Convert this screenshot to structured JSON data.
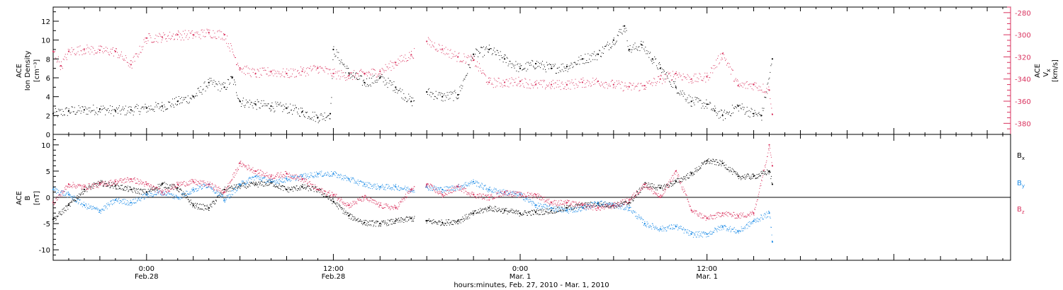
{
  "x_axis": {
    "title": "hours:minutes, Feb. 27, 2010 - Mar. 1, 2010",
    "ticks": [
      {
        "time": "0:00",
        "date": "Feb.28",
        "hours": 24
      },
      {
        "time": "12:00",
        "date": "Feb.28",
        "hours": 36
      },
      {
        "time": "0:00",
        "date": "Mar. 1",
        "hours": 48
      },
      {
        "time": "12:00",
        "date": "Mar. 1",
        "hours": 60
      }
    ]
  },
  "panel_top": {
    "left_label": {
      "line1": "ACE",
      "line2": "Ion Density",
      "line3": "[cm⁻³]"
    },
    "right_label": {
      "line1": "ACE",
      "line2": "V",
      "sub": "x",
      "line3": "[km/s]"
    },
    "left_ticks": [
      "0",
      "2",
      "4",
      "6",
      "8",
      "10",
      "12"
    ],
    "right_ticks": [
      "-280",
      "-300",
      "-320",
      "-340",
      "-360",
      "-380"
    ]
  },
  "panel_bottom": {
    "left_label": {
      "line1": "ACE",
      "line2": "B",
      "line3": "[nT]"
    },
    "left_ticks": [
      "10",
      "5",
      "0",
      "-5",
      "-10"
    ],
    "legend": [
      {
        "label": "B",
        "sub": "x",
        "color": "#000000"
      },
      {
        "label": "B",
        "sub": "y",
        "color": "#1a8ae6"
      },
      {
        "label": "B",
        "sub": "z",
        "color": "#d9325e"
      }
    ]
  },
  "chart_data": [
    {
      "type": "scatter",
      "title": "",
      "xlabel": "hours:minutes, Feb. 27, 2010 - Mar. 1, 2010",
      "x_unit": "hours since Feb 27 00:00",
      "xlim": [
        18,
        79.5
      ],
      "series": [
        {
          "name": "ACE Ion Density",
          "axis": "left",
          "color": "#000000",
          "ylim": [
            0,
            13.5
          ],
          "x": [
            18,
            19,
            20,
            21,
            22,
            23,
            24,
            25,
            26,
            27,
            28,
            29,
            29.5,
            30,
            31,
            32,
            33,
            34,
            35,
            35.8,
            36,
            37,
            38,
            39,
            40,
            41,
            42,
            43,
            44,
            45,
            46,
            47,
            48,
            49,
            50,
            51,
            52,
            53,
            54,
            54.7,
            55,
            55.8,
            56.5,
            57,
            58,
            59,
            60,
            60.5,
            61,
            62,
            63,
            63.5,
            64.2
          ],
          "y": [
            2.2,
            2.5,
            2.6,
            2.7,
            2.5,
            2.6,
            2.8,
            3.0,
            3.5,
            4.0,
            5.5,
            5.0,
            6.0,
            3.5,
            3.2,
            3.0,
            2.8,
            2.4,
            1.8,
            2.2,
            9.0,
            6.5,
            5.5,
            6.0,
            5.0,
            3.5,
            4.5,
            4.0,
            4.2,
            8.5,
            9.0,
            8.0,
            7.0,
            7.5,
            7.0,
            7.2,
            8.0,
            8.5,
            10.0,
            11.5,
            9.0,
            9.5,
            8.0,
            7.0,
            5.0,
            3.5,
            3.2,
            2.5,
            2.0,
            3.0,
            2.2,
            2.0,
            8.0
          ]
        },
        {
          "name": "ACE Vx",
          "axis": "right",
          "color": "#d9325e",
          "ylim": [
            -390,
            -275
          ],
          "x": [
            18,
            18.5,
            19,
            20,
            21,
            22,
            23,
            24,
            25,
            26,
            27,
            28,
            29,
            30,
            31,
            32,
            33,
            34,
            35,
            36,
            37,
            38,
            39,
            40,
            41,
            42,
            43,
            44,
            45,
            46,
            47,
            48,
            49,
            50,
            51,
            52,
            53,
            54,
            55,
            56,
            57,
            58,
            59,
            60,
            61,
            62,
            63,
            64,
            64.2
          ],
          "y": [
            -315,
            -328,
            -315,
            -313,
            -314,
            -315,
            -327,
            -303,
            -302,
            -300,
            -300,
            -298,
            -300,
            -330,
            -335,
            -333,
            -335,
            -333,
            -330,
            -335,
            -337,
            -335,
            -333,
            -325,
            -318,
            -306,
            -313,
            -320,
            -323,
            -343,
            -343,
            -342,
            -345,
            -345,
            -345,
            -343,
            -342,
            -345,
            -347,
            -346,
            -340,
            -335,
            -340,
            -338,
            -317,
            -346,
            -345,
            -350,
            -372
          ]
        }
      ]
    },
    {
      "type": "line",
      "title": "",
      "xlabel": "hours:minutes, Feb. 27, 2010 - Mar. 1, 2010",
      "x_unit": "hours since Feb 27 00:00",
      "xlim": [
        18,
        79.5
      ],
      "ylim": [
        -12,
        12
      ],
      "series": [
        {
          "name": "Bx",
          "color": "#000000",
          "x": [
            18,
            19,
            20,
            21,
            22,
            23,
            24,
            25,
            26,
            27,
            28,
            29,
            30,
            31,
            32,
            33,
            34,
            35,
            36,
            37,
            38,
            39,
            40,
            41,
            42,
            43,
            44,
            45,
            46,
            47,
            48,
            49,
            50,
            51,
            52,
            53,
            54,
            55,
            56,
            57,
            58,
            59,
            60,
            61,
            62,
            63,
            64,
            64.2
          ],
          "y": [
            -4.2,
            -1.5,
            1.5,
            2.8,
            2.2,
            1.5,
            1.0,
            2.5,
            1.8,
            -1.5,
            -2.0,
            1.5,
            2.2,
            2.5,
            2.8,
            1.5,
            2.0,
            1.5,
            -0.8,
            -3.5,
            -4.8,
            -5.0,
            -4.5,
            -4.0,
            -4.5,
            -4.8,
            -4.5,
            -3.0,
            -2.0,
            -2.5,
            -3.0,
            -2.8,
            -2.5,
            -2.0,
            -1.5,
            -1.2,
            -1.5,
            -1.0,
            2.5,
            1.8,
            3.0,
            4.5,
            7.0,
            6.5,
            4.0,
            4.0,
            5.0,
            2.5
          ]
        },
        {
          "name": "By",
          "color": "#1a8ae6",
          "x": [
            18,
            19,
            20,
            21,
            22,
            23,
            24,
            25,
            26,
            27,
            28,
            29,
            30,
            31,
            32,
            33,
            34,
            35,
            36,
            37,
            38,
            39,
            40,
            41,
            42,
            43,
            44,
            45,
            46,
            47,
            48,
            49,
            50,
            51,
            52,
            53,
            54,
            55,
            56,
            57,
            58,
            59,
            60,
            61,
            62,
            63,
            64,
            64.2
          ],
          "y": [
            1.5,
            0.5,
            -1.5,
            -2.5,
            -0.5,
            -1.0,
            0.5,
            1.0,
            0.0,
            1.5,
            2.5,
            -0.5,
            2.5,
            4.0,
            3.0,
            3.5,
            4.0,
            4.5,
            4.5,
            3.5,
            2.5,
            2.0,
            2.0,
            1.5,
            2.0,
            1.5,
            2.0,
            3.0,
            1.5,
            1.0,
            0.5,
            -1.5,
            -2.0,
            -2.5,
            -2.0,
            -1.0,
            -1.5,
            -2.0,
            -5.0,
            -6.0,
            -5.5,
            -7.0,
            -7.0,
            -5.5,
            -6.5,
            -4.5,
            -3.0,
            -8.5
          ]
        },
        {
          "name": "Bz",
          "color": "#d9325e",
          "x": [
            18,
            19,
            20,
            21,
            22,
            23,
            24,
            25,
            26,
            27,
            28,
            29,
            30,
            31,
            32,
            33,
            34,
            35,
            36,
            37,
            38,
            39,
            40,
            41,
            42,
            43,
            44,
            45,
            46,
            47,
            48,
            49,
            50,
            51,
            52,
            53,
            54,
            55,
            56,
            57,
            58,
            59,
            60,
            61,
            62,
            63,
            64,
            64.2
          ],
          "y": [
            -1.0,
            2.5,
            2.0,
            2.5,
            3.0,
            3.5,
            2.5,
            1.0,
            2.5,
            3.0,
            2.5,
            1.0,
            6.5,
            5.0,
            4.0,
            4.5,
            3.5,
            1.5,
            0.5,
            -1.5,
            0.0,
            -1.5,
            -2.0,
            1.5,
            2.5,
            0.5,
            2.0,
            0.5,
            0.0,
            1.0,
            0.5,
            0.5,
            -1.0,
            -1.0,
            -1.5,
            -2.0,
            -1.5,
            -0.5,
            2.5,
            0.0,
            5.0,
            -2.5,
            -4.0,
            -3.0,
            -3.5,
            -3.0,
            10.0,
            6.0
          ]
        }
      ]
    }
  ]
}
